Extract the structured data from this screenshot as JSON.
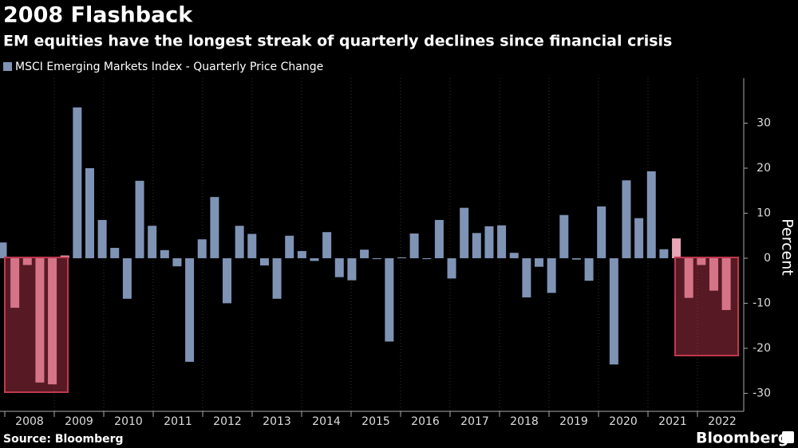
{
  "chart_data": {
    "type": "bar",
    "title": "2008 Flashback",
    "subtitle": "EM equities have the longest streak of quarterly declines since financial crisis",
    "series": [
      {
        "name": "MSCI Emerging Markets Index - Quarterly Price Change",
        "color": "#7f93b5",
        "values": [
          3.5,
          -11,
          -1.5,
          -27.6,
          -28,
          0.6,
          33.5,
          20,
          8.5,
          2.3,
          -9,
          17.2,
          7.2,
          1.8,
          -1.8,
          -23,
          4.2,
          13.6,
          -10,
          7.2,
          5.4,
          -1.6,
          -9,
          5.0,
          1.6,
          -0.6,
          5.8,
          -4.2,
          -4.9,
          1.9,
          -0.2,
          -18.5,
          0.2,
          5.5,
          -0.2,
          8.5,
          -4.5,
          11.2,
          5.6,
          7.1,
          7.3,
          1.2,
          -8.7,
          -1.9,
          -7.7,
          9.6,
          -0.3,
          -5,
          11.5,
          -23.6,
          17.3,
          8.9,
          19.3,
          2,
          4.4,
          -8.8,
          -1.5,
          -7.2,
          -11.5
        ]
      }
    ],
    "highlight_color": "#c0394f",
    "years": [
      "2008",
      "2009",
      "2010",
      "2011",
      "2012",
      "2013",
      "2014",
      "2015",
      "2016",
      "2017",
      "2018",
      "2019",
      "2020",
      "2021",
      "2022"
    ],
    "ylabel": "Percent",
    "ylim": [
      -34,
      40
    ],
    "yticks": [
      -30,
      -20,
      -10,
      0,
      10,
      20,
      30
    ],
    "source": "Source: Bloomberg",
    "brand": "Bloomberg"
  }
}
